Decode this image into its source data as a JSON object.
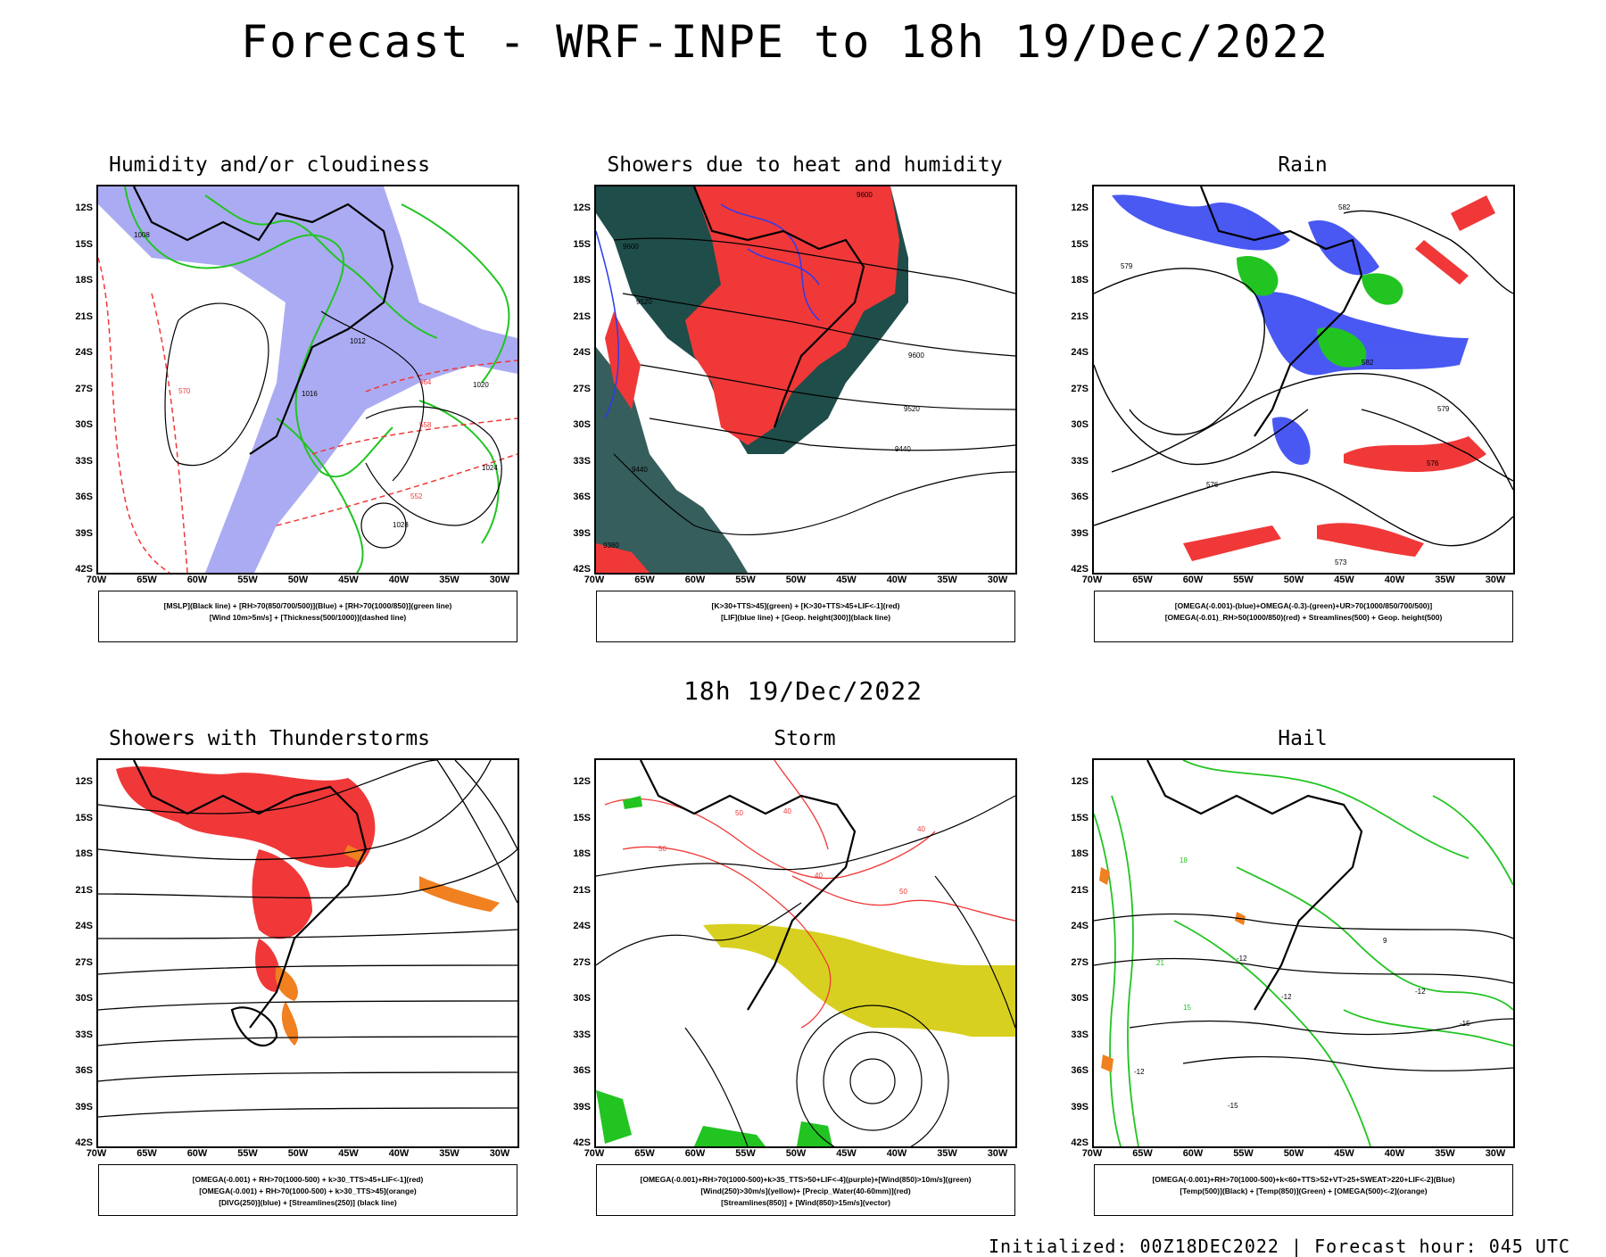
{
  "header": {
    "title": "Forecast - WRF-INPE to 18h 19/Dec/2022",
    "subtitle": "18h 19/Dec/2022"
  },
  "footer": {
    "text": "Initialized: 00Z18DEC2022 | Forecast hour: 045 UTC"
  },
  "axes": {
    "latitudes": [
      "12S",
      "15S",
      "18S",
      "21S",
      "24S",
      "27S",
      "30S",
      "33S",
      "36S",
      "39S",
      "42S"
    ],
    "longitudes": [
      "70W",
      "65W",
      "60W",
      "55W",
      "50W",
      "45W",
      "40W",
      "35W",
      "30W"
    ]
  },
  "panels": [
    {
      "title": "Humidity and/or cloudiness",
      "legend": [
        "[MSLP](Black line) + [RH>70(850/700/500)](Blue) + [RH>70(1000/850)](green line)",
        "[Wind 10m>5m/s] + [Thickness(500/1000)](dashed line)"
      ],
      "contour_labels": [
        "1008",
        "1012",
        "1016",
        "1020",
        "1024",
        "1028",
        "564",
        "570",
        "558",
        "552"
      ]
    },
    {
      "title": "Showers due to heat and humidity",
      "legend": [
        "[K>30+TTS>45](green) + [K>30+TTS>45+LIF<-1](red)",
        "[LIF](blue line) + [Geop. height(300)](black line)"
      ],
      "contour_labels": [
        "9600",
        "9520",
        "9440",
        "9380"
      ]
    },
    {
      "title": "Rain",
      "legend": [
        "[OMEGA(-0.001)-(blue)+OMEGA(-0.3)-(green)+UR>70(1000/850/700/500)]",
        "[OMEGA(-0.01)_RH>50(1000/850)(red) + Streamlines(500) + Geop. height(500)"
      ],
      "contour_labels": [
        "582",
        "579",
        "576",
        "573"
      ]
    },
    {
      "title": "Showers with Thunderstorms",
      "legend": [
        "[OMEGA(-0.001) + RH>70(1000-500) + k>30_TTS>45+LIF<-1](red)",
        "[OMEGA(-0.001) + RH>70(1000-500) + k>30_TTS>45](orange)",
        "[DIVG(250)](blue) + [Streamlines(250)] (black line)"
      ],
      "contour_labels": []
    },
    {
      "title": "Storm",
      "legend": [
        "[OMEGA(-0.001)+RH>70(1000-500)+k>35_TTS>50+LIF<-4](purple)+[Wind(850)>10m/s](green)",
        "[Wind(250)>30m/s](yellow)+ [Precip_Water(40-60mm)](red)",
        "[Streamlines(850)] + [Wind(850)>15m/s](vector)"
      ],
      "contour_labels": [
        "50",
        "40"
      ]
    },
    {
      "title": "Hail",
      "legend": [
        "[OMEGA(-0.001)+RH>70(1000-500)+k<60+TTS>52+VT>25+SWEAT>220+LIF<-2](Blue)",
        "[Temp(500)](Black) + [Temp(850)](Green) + [OMEGA(500)<-2](orange)"
      ],
      "contour_labels": [
        "-12",
        "-15",
        "15",
        "18",
        "21",
        "9"
      ]
    }
  ],
  "colors": {
    "green": "#22c422",
    "blue": "#2a3cf0",
    "red": "#f03838",
    "orange": "#f08020",
    "yellow": "#d8d020",
    "lavender": "#8888ee",
    "darkteal": "#1f4d4a"
  }
}
